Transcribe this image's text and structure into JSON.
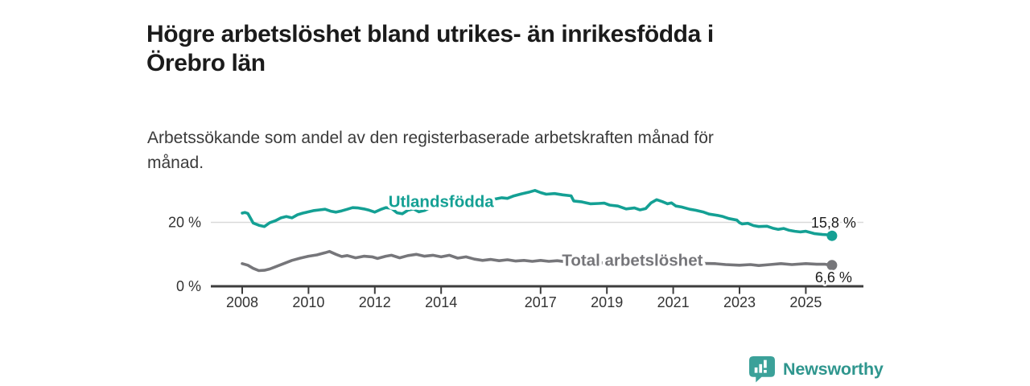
{
  "header": {
    "title_line1": "Högre arbetslöshet bland utrikes- än inrikesfödda i",
    "title_line2": "Örebro län",
    "subtitle_line1": "Arbetssökande som andel av den registerbaserade arbetskraften månad för",
    "subtitle_line2": "månad."
  },
  "footer": {
    "brand": "Newsworthy",
    "brand_color": "#2f968e",
    "logo_icon": "speech-bubble-bar-chart-exclamation"
  },
  "chart_data": {
    "type": "line",
    "title": "Högre arbetslöshet bland utrikes- än inrikesfödda i Örebro län",
    "subtitle": "Arbetssökande som andel av den registerbaserade arbetskraften månad för månad.",
    "xlabel": "",
    "ylabel": "",
    "x_range_years": [
      2007.05,
      2026.74
    ],
    "ylim": [
      0,
      33
    ],
    "grid": "single horizontal gridline at 20 %",
    "legend_position": "inline labels on lines",
    "colors": {
      "grid": "#d9d9d9",
      "axis": "#3d3d3d",
      "tick_text": "#333333",
      "value_text": "#1c1c1c"
    },
    "x_ticks": [
      {
        "year": 2008,
        "label": "2008"
      },
      {
        "year": 2010,
        "label": "2010"
      },
      {
        "year": 2012,
        "label": "2012"
      },
      {
        "year": 2014,
        "label": "2014"
      },
      {
        "year": 2017,
        "label": "2017"
      },
      {
        "year": 2019,
        "label": "2019"
      },
      {
        "year": 2021,
        "label": "2021"
      },
      {
        "year": 2023,
        "label": "2023"
      },
      {
        "year": 2025,
        "label": "2025"
      }
    ],
    "y_ticks": [
      {
        "value": 0,
        "label": "0 %"
      },
      {
        "value": 20,
        "label": "20 %"
      }
    ],
    "series": [
      {
        "id": "utlandsfodda",
        "name": "Utlandsfödda",
        "color": "#14a094",
        "end_label": "15,8 %",
        "end_value": 15.8,
        "end_label_dy": -10,
        "label_anchor": [
          2014.0,
          26.4
        ],
        "points": [
          [
            2008.0,
            22.9
          ],
          [
            2008.08,
            23.1
          ],
          [
            2008.17,
            22.8
          ],
          [
            2008.33,
            19.8
          ],
          [
            2008.5,
            19.1
          ],
          [
            2008.67,
            18.7
          ],
          [
            2008.83,
            19.9
          ],
          [
            2009.0,
            20.5
          ],
          [
            2009.17,
            21.4
          ],
          [
            2009.33,
            21.8
          ],
          [
            2009.5,
            21.4
          ],
          [
            2009.67,
            22.4
          ],
          [
            2009.83,
            22.9
          ],
          [
            2010.0,
            23.3
          ],
          [
            2010.17,
            23.7
          ],
          [
            2010.33,
            23.9
          ],
          [
            2010.5,
            24.1
          ],
          [
            2010.67,
            23.5
          ],
          [
            2010.83,
            23.2
          ],
          [
            2011.0,
            23.6
          ],
          [
            2011.17,
            24.1
          ],
          [
            2011.33,
            24.6
          ],
          [
            2011.5,
            24.5
          ],
          [
            2011.67,
            24.2
          ],
          [
            2011.83,
            23.8
          ],
          [
            2012.0,
            23.2
          ],
          [
            2012.17,
            24.0
          ],
          [
            2012.33,
            24.6
          ],
          [
            2012.5,
            24.4
          ],
          [
            2012.67,
            23.0
          ],
          [
            2012.83,
            22.7
          ],
          [
            2013.0,
            23.8
          ],
          [
            2013.17,
            24.2
          ],
          [
            2013.33,
            23.3
          ],
          [
            2013.5,
            23.7
          ],
          [
            2013.67,
            24.6
          ],
          [
            2013.83,
            24.9
          ],
          [
            2014.0,
            25.3
          ],
          [
            2014.17,
            25.6
          ],
          [
            2014.33,
            25.4
          ],
          [
            2014.42,
            26.1
          ],
          [
            2014.58,
            25.9
          ],
          [
            2014.75,
            26.6
          ],
          [
            2014.92,
            26.5
          ],
          [
            2015.08,
            27.1
          ],
          [
            2015.33,
            26.9
          ],
          [
            2015.58,
            27.2
          ],
          [
            2015.83,
            27.7
          ],
          [
            2016.0,
            27.5
          ],
          [
            2016.17,
            28.2
          ],
          [
            2016.42,
            28.9
          ],
          [
            2016.67,
            29.5
          ],
          [
            2016.83,
            30.0
          ],
          [
            2017.0,
            29.3
          ],
          [
            2017.17,
            28.8
          ],
          [
            2017.42,
            29.0
          ],
          [
            2017.67,
            28.6
          ],
          [
            2017.92,
            28.3
          ],
          [
            2018.0,
            26.7
          ],
          [
            2018.25,
            26.4
          ],
          [
            2018.5,
            25.8
          ],
          [
            2018.75,
            25.9
          ],
          [
            2018.92,
            26.0
          ],
          [
            2019.08,
            25.4
          ],
          [
            2019.33,
            25.1
          ],
          [
            2019.58,
            24.2
          ],
          [
            2019.83,
            24.5
          ],
          [
            2020.0,
            23.9
          ],
          [
            2020.17,
            24.3
          ],
          [
            2020.33,
            26.1
          ],
          [
            2020.5,
            27.1
          ],
          [
            2020.67,
            26.5
          ],
          [
            2020.83,
            25.8
          ],
          [
            2020.95,
            26.1
          ],
          [
            2021.08,
            25.1
          ],
          [
            2021.25,
            24.8
          ],
          [
            2021.5,
            24.1
          ],
          [
            2021.67,
            23.8
          ],
          [
            2021.92,
            23.2
          ],
          [
            2022.08,
            22.6
          ],
          [
            2022.33,
            22.2
          ],
          [
            2022.5,
            21.8
          ],
          [
            2022.67,
            21.2
          ],
          [
            2022.92,
            20.7
          ],
          [
            2023.0,
            19.9
          ],
          [
            2023.08,
            19.5
          ],
          [
            2023.25,
            19.7
          ],
          [
            2023.42,
            19.0
          ],
          [
            2023.58,
            18.7
          ],
          [
            2023.83,
            18.8
          ],
          [
            2024.0,
            18.2
          ],
          [
            2024.17,
            17.8
          ],
          [
            2024.33,
            18.1
          ],
          [
            2024.5,
            17.5
          ],
          [
            2024.67,
            17.2
          ],
          [
            2024.83,
            17.0
          ],
          [
            2025.0,
            17.2
          ],
          [
            2025.25,
            16.5
          ],
          [
            2025.5,
            16.2
          ],
          [
            2025.67,
            16.1
          ],
          [
            2025.79,
            15.8
          ]
        ]
      },
      {
        "id": "total-arbetsloshet",
        "name": "Total arbetslöshet",
        "color": "#76767a",
        "end_label": "6,6 %",
        "end_value": 6.6,
        "end_label_dy": 21,
        "label_anchor": [
          2019.77,
          8.05
        ],
        "points": [
          [
            2008.0,
            7.1
          ],
          [
            2008.17,
            6.6
          ],
          [
            2008.33,
            5.6
          ],
          [
            2008.5,
            4.9
          ],
          [
            2008.67,
            5.0
          ],
          [
            2008.83,
            5.4
          ],
          [
            2009.0,
            6.1
          ],
          [
            2009.25,
            7.1
          ],
          [
            2009.5,
            8.1
          ],
          [
            2009.75,
            8.8
          ],
          [
            2010.0,
            9.4
          ],
          [
            2010.25,
            9.8
          ],
          [
            2010.5,
            10.5
          ],
          [
            2010.63,
            10.9
          ],
          [
            2010.83,
            10.0
          ],
          [
            2011.0,
            9.3
          ],
          [
            2011.17,
            9.6
          ],
          [
            2011.42,
            8.9
          ],
          [
            2011.67,
            9.4
          ],
          [
            2011.92,
            9.2
          ],
          [
            2012.08,
            8.7
          ],
          [
            2012.33,
            9.4
          ],
          [
            2012.5,
            9.7
          ],
          [
            2012.75,
            8.9
          ],
          [
            2013.0,
            9.6
          ],
          [
            2013.25,
            10.0
          ],
          [
            2013.5,
            9.4
          ],
          [
            2013.75,
            9.7
          ],
          [
            2014.0,
            9.2
          ],
          [
            2014.25,
            9.7
          ],
          [
            2014.5,
            8.8
          ],
          [
            2014.75,
            9.2
          ],
          [
            2015.0,
            8.5
          ],
          [
            2015.25,
            8.1
          ],
          [
            2015.5,
            8.4
          ],
          [
            2015.75,
            8.0
          ],
          [
            2016.0,
            8.3
          ],
          [
            2016.25,
            7.9
          ],
          [
            2016.5,
            8.1
          ],
          [
            2016.75,
            7.8
          ],
          [
            2017.0,
            8.1
          ],
          [
            2017.25,
            7.8
          ],
          [
            2017.5,
            8.0
          ],
          [
            2017.75,
            7.7
          ],
          [
            2018.0,
            7.6
          ],
          [
            2018.5,
            7.4
          ],
          [
            2019.0,
            7.3
          ],
          [
            2019.5,
            7.2
          ],
          [
            2020.0,
            7.6
          ],
          [
            2020.42,
            8.3
          ],
          [
            2020.83,
            8.0
          ],
          [
            2021.25,
            7.6
          ],
          [
            2021.75,
            7.2
          ],
          [
            2022.25,
            7.1
          ],
          [
            2022.58,
            6.8
          ],
          [
            2023.0,
            6.6
          ],
          [
            2023.33,
            6.8
          ],
          [
            2023.58,
            6.5
          ],
          [
            2023.92,
            6.8
          ],
          [
            2024.25,
            7.1
          ],
          [
            2024.58,
            6.8
          ],
          [
            2025.0,
            7.1
          ],
          [
            2025.33,
            6.9
          ],
          [
            2025.58,
            6.9
          ],
          [
            2025.79,
            6.6
          ]
        ]
      }
    ]
  }
}
